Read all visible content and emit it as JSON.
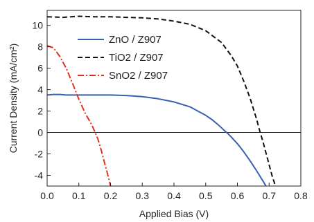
{
  "chart_data": {
    "type": "line",
    "xlabel": "Applied Bias (V)",
    "ylabel": "Current Density (mA/cm²)",
    "xlim": [
      0.0,
      0.8
    ],
    "ylim": [
      -5,
      11.4
    ],
    "x_ticks": [
      0.0,
      0.1,
      0.2,
      0.3,
      0.4,
      0.5,
      0.6,
      0.7,
      0.8
    ],
    "x_tick_labels": [
      "0.0",
      "0.1",
      "0.2",
      "0.3",
      "0.4",
      "0.5",
      "0.6",
      "0.7",
      "0.8"
    ],
    "y_ticks": [
      -4,
      -2,
      0,
      2,
      4,
      6,
      8,
      10
    ],
    "y_tick_labels": [
      "-4",
      "-2",
      "0",
      "2",
      "4",
      "6",
      "8",
      "10"
    ],
    "grid": false,
    "zero_line": true,
    "legend_position": "top-left",
    "series": [
      {
        "name": "ZnO  / Z907",
        "color": "#3a5fb0",
        "dash": "solid",
        "x": [
          0.0,
          0.02,
          0.04,
          0.06,
          0.1,
          0.15,
          0.2,
          0.25,
          0.3,
          0.35,
          0.4,
          0.45,
          0.5,
          0.52,
          0.54,
          0.56,
          0.57,
          0.58,
          0.6,
          0.62,
          0.64,
          0.66,
          0.68,
          0.69
        ],
        "y": [
          3.5,
          3.55,
          3.55,
          3.5,
          3.5,
          3.5,
          3.5,
          3.45,
          3.35,
          3.15,
          2.85,
          2.4,
          1.6,
          1.2,
          0.7,
          0.15,
          -0.1,
          -0.4,
          -1.05,
          -1.8,
          -2.65,
          -3.55,
          -4.5,
          -5.0
        ]
      },
      {
        "name": "TiO2 / Z907",
        "color": "#111111",
        "dash": "dashed",
        "x": [
          0.0,
          0.05,
          0.1,
          0.15,
          0.2,
          0.25,
          0.3,
          0.35,
          0.4,
          0.45,
          0.5,
          0.55,
          0.58,
          0.6,
          0.62,
          0.64,
          0.66,
          0.67,
          0.68,
          0.69,
          0.7,
          0.71,
          0.72
        ],
        "y": [
          10.8,
          10.75,
          10.85,
          10.8,
          10.8,
          10.75,
          10.7,
          10.6,
          10.4,
          10.1,
          9.5,
          8.4,
          7.2,
          6.2,
          4.8,
          3.2,
          1.3,
          0.2,
          -0.8,
          -1.9,
          -3.0,
          -4.1,
          -5.0
        ]
      },
      {
        "name": "SnO2 / Z907",
        "color": "#e02f1e",
        "dash": "dashdot",
        "x": [
          0.0,
          0.02,
          0.04,
          0.06,
          0.08,
          0.1,
          0.12,
          0.14,
          0.15,
          0.16,
          0.17,
          0.18,
          0.19,
          0.2
        ],
        "y": [
          8.1,
          7.9,
          7.1,
          6.0,
          4.6,
          3.1,
          1.8,
          0.75,
          0.1,
          -0.6,
          -1.6,
          -2.7,
          -3.8,
          -5.0
        ]
      }
    ]
  }
}
